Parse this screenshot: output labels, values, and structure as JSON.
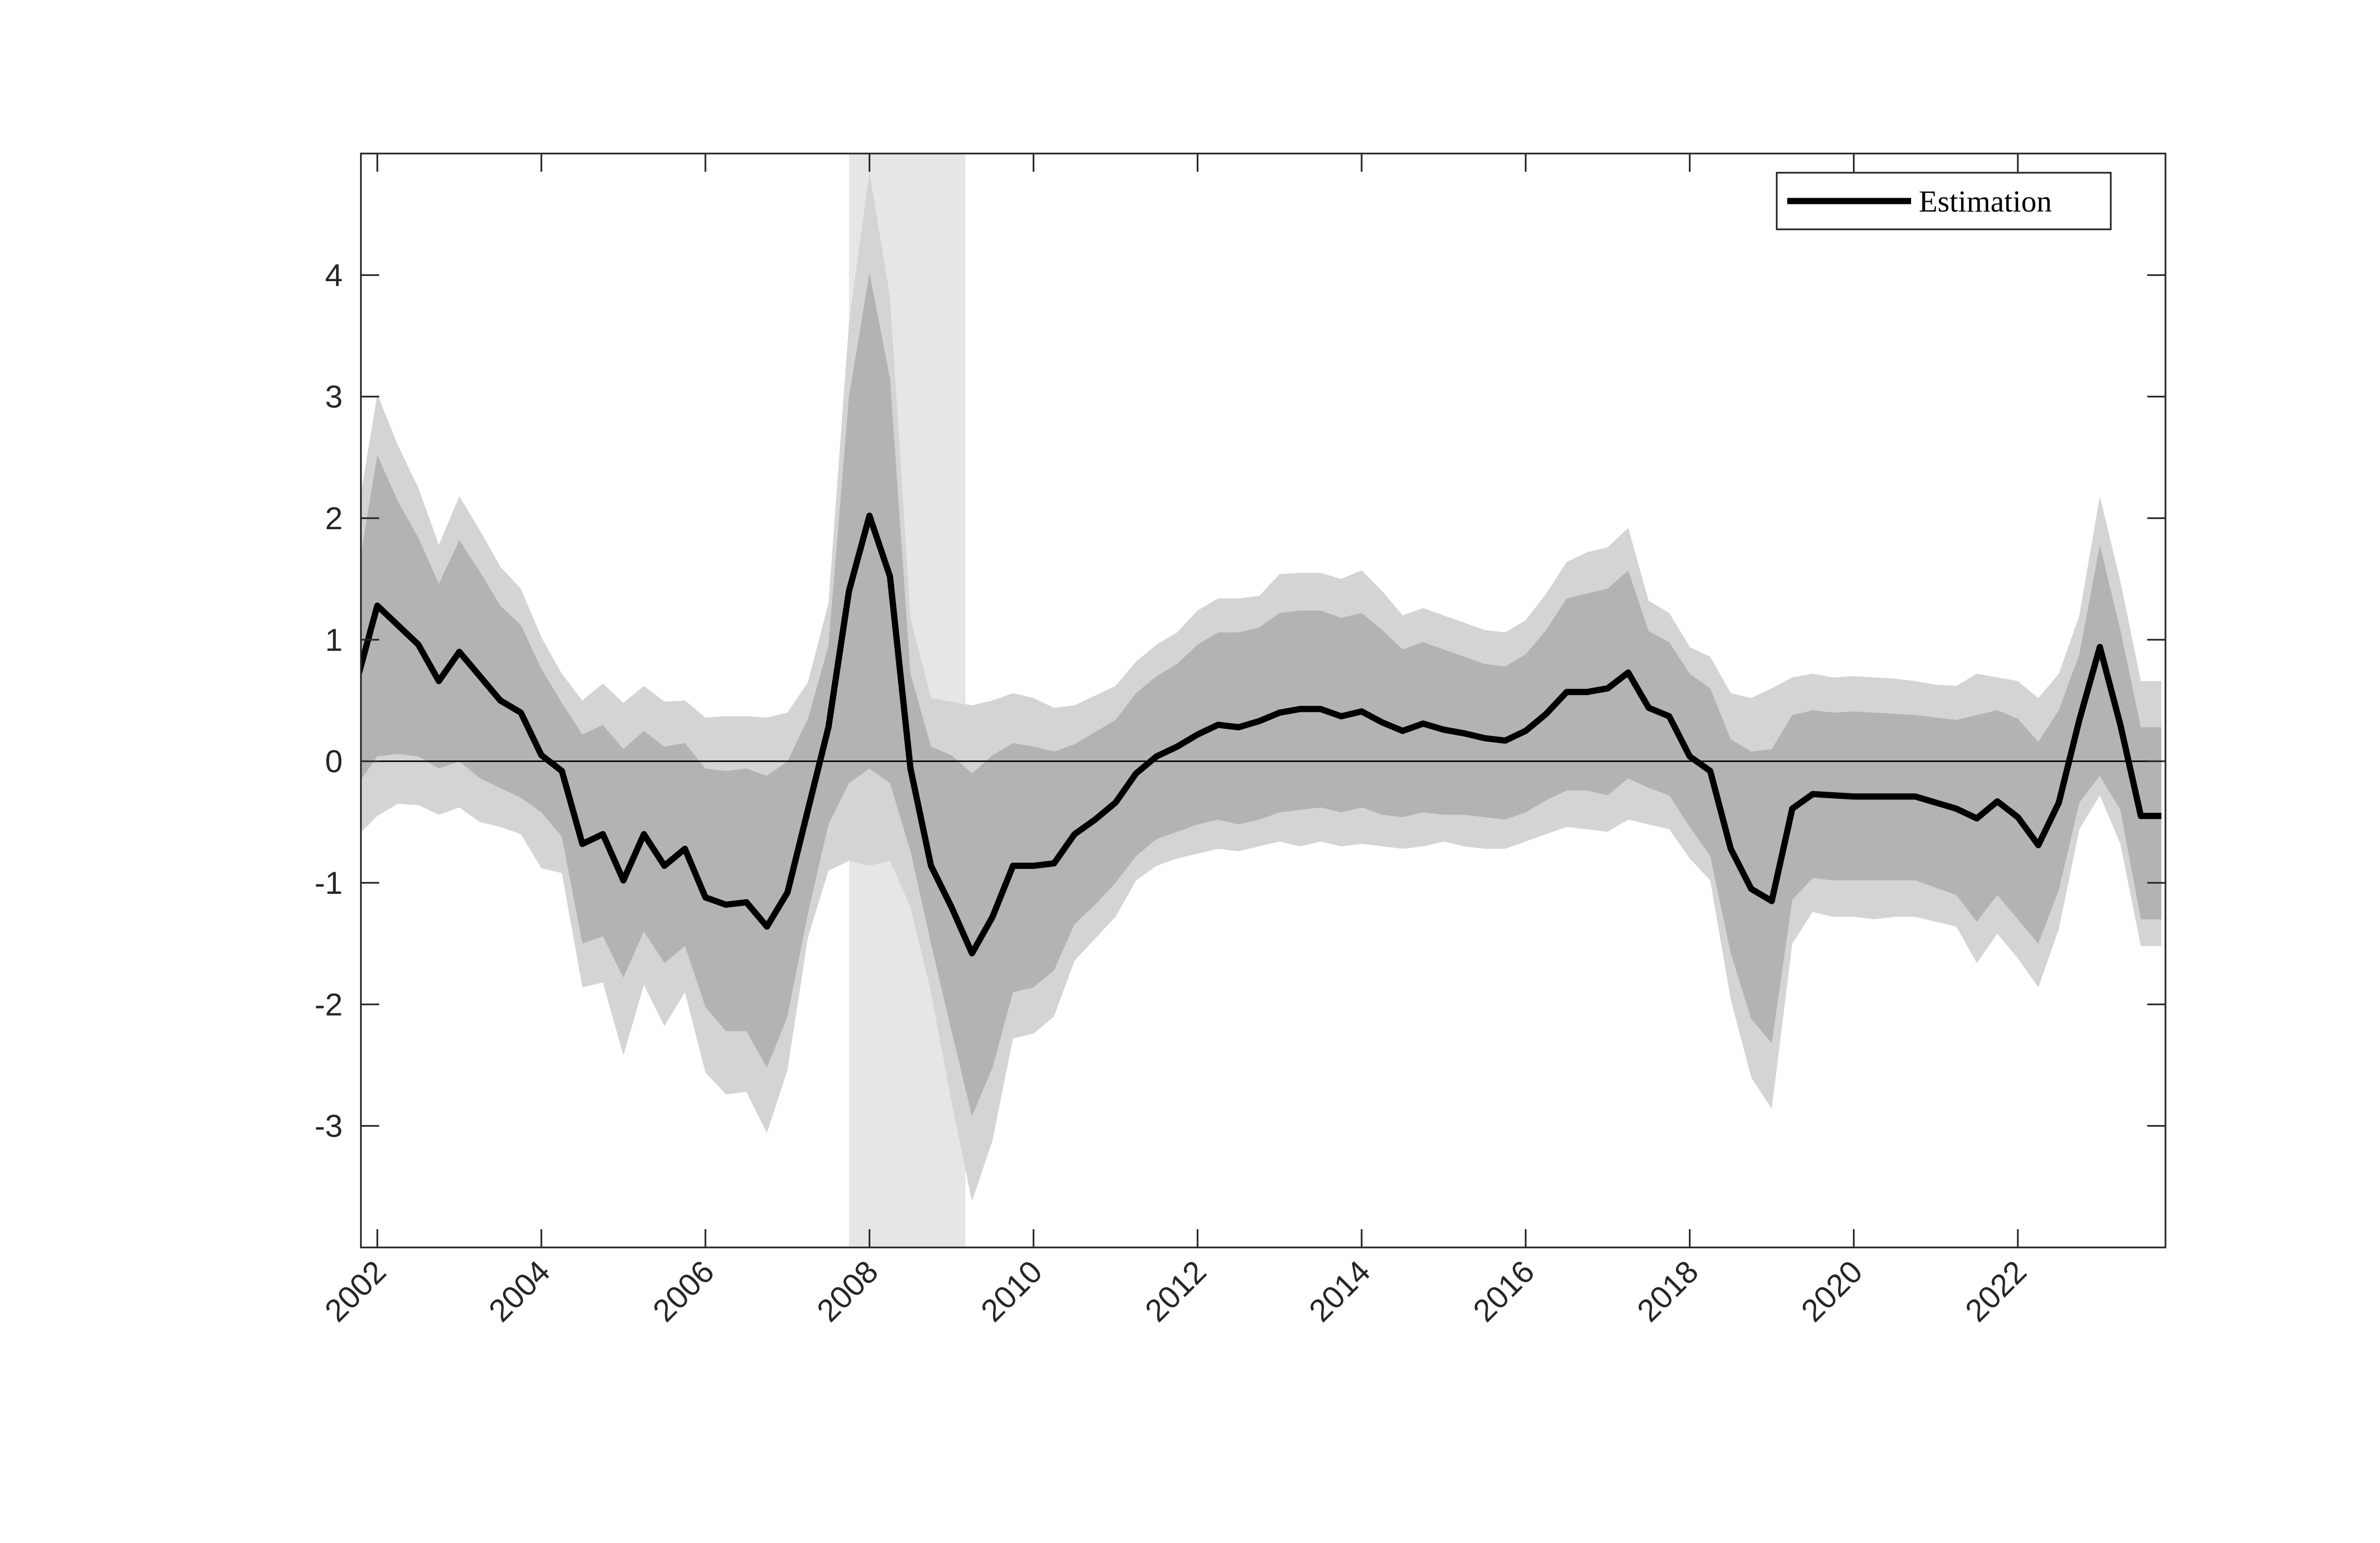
{
  "chart_data": {
    "type": "line",
    "title": "",
    "xlabel": "",
    "ylabel": "",
    "xlim": [
      2001.8,
      2023.8
    ],
    "ylim": [
      -4,
      5
    ],
    "x_ticks": [
      2002,
      2004,
      2006,
      2008,
      2010,
      2012,
      2014,
      2016,
      2018,
      2020,
      2022
    ],
    "y_ticks": [
      -3,
      -2,
      -1,
      0,
      1,
      2,
      3,
      4
    ],
    "grid": false,
    "legend": {
      "placement": "top-right",
      "entries": [
        "Estimation"
      ]
    },
    "zero_line": 0,
    "shaded_period": {
      "start": 2007.75,
      "end": 2009.17,
      "color": "#e6e6e6"
    },
    "colors": {
      "line": "#000000",
      "inner_band": "#b3b3b3",
      "outer_band": "#d4d4d4",
      "recession": "#e6e6e6",
      "axes": "#262626"
    },
    "series": [
      {
        "name": "Estimation",
        "x": [
          2001.75,
          2002.0,
          2002.25,
          2002.5,
          2002.75,
          2003.0,
          2003.25,
          2003.5,
          2003.75,
          2004.0,
          2004.25,
          2004.5,
          2004.75,
          2005.0,
          2005.25,
          2005.5,
          2005.75,
          2006.0,
          2006.25,
          2006.5,
          2006.75,
          2007.0,
          2007.25,
          2007.5,
          2007.75,
          2008.0,
          2008.25,
          2008.5,
          2008.75,
          2009.0,
          2009.25,
          2009.5,
          2009.75,
          2010.0,
          2010.25,
          2010.5,
          2010.75,
          2011.0,
          2011.25,
          2011.5,
          2011.75,
          2012.0,
          2012.25,
          2012.5,
          2012.75,
          2013.0,
          2013.25,
          2013.5,
          2013.75,
          2014.0,
          2014.25,
          2014.5,
          2014.75,
          2015.0,
          2015.25,
          2015.5,
          2015.75,
          2016.0,
          2016.25,
          2016.5,
          2016.75,
          2017.0,
          2017.25,
          2017.5,
          2017.75,
          2018.0,
          2018.25,
          2018.5,
          2018.75,
          2019.0,
          2019.25,
          2019.5,
          2019.75,
          2020.0,
          2020.25,
          2020.5,
          2020.75,
          2021.0,
          2021.25,
          2021.5,
          2021.75,
          2022.0,
          2022.25,
          2022.5,
          2022.75,
          2023.0,
          2023.25,
          2023.5,
          2023.75
        ],
        "values": [
          0.66,
          1.28,
          1.12,
          0.96,
          0.66,
          0.9,
          0.7,
          0.5,
          0.4,
          0.05,
          -0.08,
          -0.68,
          -0.6,
          -0.98,
          -0.6,
          -0.86,
          -0.72,
          -1.12,
          -1.18,
          -1.16,
          -1.36,
          -1.08,
          -0.4,
          0.28,
          1.4,
          2.02,
          1.52,
          -0.06,
          -0.86,
          -1.2,
          -1.58,
          -1.28,
          -0.86,
          -0.86,
          -0.84,
          -0.6,
          -0.48,
          -0.34,
          -0.1,
          0.04,
          0.12,
          0.22,
          0.3,
          0.28,
          0.33,
          0.4,
          0.43,
          0.43,
          0.37,
          0.41,
          0.32,
          0.25,
          0.31,
          0.26,
          0.23,
          0.19,
          0.17,
          0.25,
          0.39,
          0.57,
          0.57,
          0.6,
          0.73,
          0.44,
          0.37,
          0.04,
          -0.08,
          -0.72,
          -1.05,
          -1.15,
          -0.39,
          -0.27,
          -0.28,
          -0.29,
          -0.29,
          -0.29,
          -0.29,
          -0.34,
          -0.39,
          -0.47,
          -0.33,
          -0.46,
          -0.69,
          -0.34,
          0.34,
          0.94,
          0.3,
          -0.45,
          -0.45
        ]
      }
    ],
    "bands": {
      "x": [
        2001.75,
        2002.0,
        2002.25,
        2002.5,
        2002.75,
        2003.0,
        2003.25,
        2003.5,
        2003.75,
        2004.0,
        2004.25,
        2004.5,
        2004.75,
        2005.0,
        2005.25,
        2005.5,
        2005.75,
        2006.0,
        2006.25,
        2006.5,
        2006.75,
        2007.0,
        2007.25,
        2007.5,
        2007.75,
        2008.0,
        2008.25,
        2008.5,
        2008.75,
        2009.0,
        2009.25,
        2009.5,
        2009.75,
        2010.0,
        2010.25,
        2010.5,
        2010.75,
        2011.0,
        2011.25,
        2011.5,
        2011.75,
        2012.0,
        2012.25,
        2012.5,
        2012.75,
        2013.0,
        2013.25,
        2013.5,
        2013.75,
        2014.0,
        2014.25,
        2014.5,
        2014.75,
        2015.0,
        2015.25,
        2015.5,
        2015.75,
        2016.0,
        2016.25,
        2016.5,
        2016.75,
        2017.0,
        2017.25,
        2017.5,
        2017.75,
        2018.0,
        2018.25,
        2018.5,
        2018.75,
        2019.0,
        2019.25,
        2019.5,
        2019.75,
        2020.0,
        2020.25,
        2020.5,
        2020.75,
        2021.0,
        2021.25,
        2021.5,
        2021.75,
        2022.0,
        2022.25,
        2022.5,
        2022.75,
        2023.0,
        2023.25,
        2023.5,
        2023.75
      ],
      "outer_upper": [
        2.0,
        3.02,
        2.6,
        2.25,
        1.78,
        2.18,
        1.9,
        1.6,
        1.42,
        1.02,
        0.72,
        0.5,
        0.64,
        0.48,
        0.62,
        0.49,
        0.5,
        0.36,
        0.37,
        0.37,
        0.36,
        0.4,
        0.65,
        1.3,
        3.6,
        4.85,
        3.82,
        1.18,
        0.52,
        0.49,
        0.46,
        0.5,
        0.56,
        0.52,
        0.44,
        0.46,
        0.54,
        0.62,
        0.82,
        0.96,
        1.06,
        1.24,
        1.34,
        1.34,
        1.36,
        1.54,
        1.55,
        1.55,
        1.5,
        1.57,
        1.4,
        1.2,
        1.26,
        1.2,
        1.14,
        1.08,
        1.06,
        1.16,
        1.38,
        1.64,
        1.72,
        1.76,
        1.92,
        1.32,
        1.22,
        0.94,
        0.86,
        0.56,
        0.52,
        0.6,
        0.69,
        0.72,
        0.69,
        0.7,
        0.69,
        0.68,
        0.66,
        0.63,
        0.62,
        0.72,
        0.69,
        0.66,
        0.52,
        0.72,
        1.2,
        2.18,
        1.48,
        0.66,
        0.66
      ],
      "inner_upper": [
        1.5,
        2.52,
        2.14,
        1.84,
        1.46,
        1.82,
        1.56,
        1.28,
        1.12,
        0.76,
        0.48,
        0.22,
        0.3,
        0.1,
        0.25,
        0.12,
        0.15,
        -0.06,
        -0.08,
        -0.06,
        -0.12,
        0.0,
        0.35,
        0.95,
        3.0,
        4.02,
        3.15,
        0.72,
        0.12,
        0.05,
        -0.1,
        0.05,
        0.15,
        0.12,
        0.08,
        0.14,
        0.24,
        0.34,
        0.56,
        0.7,
        0.8,
        0.96,
        1.06,
        1.06,
        1.1,
        1.22,
        1.24,
        1.24,
        1.18,
        1.22,
        1.08,
        0.92,
        0.98,
        0.92,
        0.86,
        0.8,
        0.78,
        0.88,
        1.08,
        1.34,
        1.38,
        1.42,
        1.57,
        1.07,
        0.98,
        0.72,
        0.6,
        0.18,
        0.08,
        0.1,
        0.38,
        0.42,
        0.4,
        0.41,
        0.4,
        0.39,
        0.38,
        0.36,
        0.34,
        0.38,
        0.42,
        0.35,
        0.16,
        0.42,
        0.88,
        1.78,
        1.08,
        0.28,
        0.28
      ],
      "inner_lower": [
        -0.2,
        0.04,
        0.06,
        0.04,
        -0.06,
        0.0,
        -0.14,
        -0.22,
        -0.3,
        -0.42,
        -0.62,
        -1.5,
        -1.44,
        -1.78,
        -1.4,
        -1.66,
        -1.52,
        -2.02,
        -2.22,
        -2.22,
        -2.52,
        -2.1,
        -1.25,
        -0.52,
        -0.18,
        -0.06,
        -0.18,
        -0.74,
        -1.5,
        -2.22,
        -2.92,
        -2.52,
        -1.9,
        -1.86,
        -1.72,
        -1.34,
        -1.18,
        -1.0,
        -0.78,
        -0.64,
        -0.58,
        -0.52,
        -0.48,
        -0.52,
        -0.48,
        -0.42,
        -0.4,
        -0.38,
        -0.42,
        -0.38,
        -0.44,
        -0.46,
        -0.42,
        -0.44,
        -0.44,
        -0.46,
        -0.48,
        -0.42,
        -0.32,
        -0.24,
        -0.24,
        -0.28,
        -0.14,
        -0.22,
        -0.28,
        -0.54,
        -0.78,
        -1.58,
        -2.12,
        -2.32,
        -1.14,
        -0.96,
        -0.98,
        -0.98,
        -0.98,
        -0.98,
        -0.98,
        -1.04,
        -1.1,
        -1.32,
        -1.1,
        -1.3,
        -1.5,
        -1.06,
        -0.34,
        -0.12,
        -0.4,
        -1.3,
        -1.3
      ],
      "outer_lower": [
        -0.62,
        -0.45,
        -0.35,
        -0.36,
        -0.44,
        -0.38,
        -0.5,
        -0.54,
        -0.6,
        -0.88,
        -0.92,
        -1.86,
        -1.82,
        -2.42,
        -1.84,
        -2.18,
        -1.9,
        -2.56,
        -2.74,
        -2.72,
        -3.06,
        -2.54,
        -1.45,
        -0.9,
        -0.82,
        -0.86,
        -0.82,
        -1.2,
        -1.9,
        -2.8,
        -3.62,
        -3.12,
        -2.28,
        -2.24,
        -2.1,
        -1.64,
        -1.46,
        -1.28,
        -0.98,
        -0.86,
        -0.8,
        -0.76,
        -0.72,
        -0.74,
        -0.7,
        -0.66,
        -0.7,
        -0.66,
        -0.7,
        -0.68,
        -0.7,
        -0.72,
        -0.7,
        -0.66,
        -0.7,
        -0.72,
        -0.72,
        -0.66,
        -0.6,
        -0.54,
        -0.56,
        -0.58,
        -0.48,
        -0.52,
        -0.56,
        -0.8,
        -0.98,
        -1.96,
        -2.6,
        -2.86,
        -1.5,
        -1.24,
        -1.28,
        -1.28,
        -1.3,
        -1.28,
        -1.28,
        -1.32,
        -1.36,
        -1.66,
        -1.42,
        -1.62,
        -1.86,
        -1.38,
        -0.56,
        -0.28,
        -0.68,
        -1.52,
        -1.52
      ]
    }
  }
}
